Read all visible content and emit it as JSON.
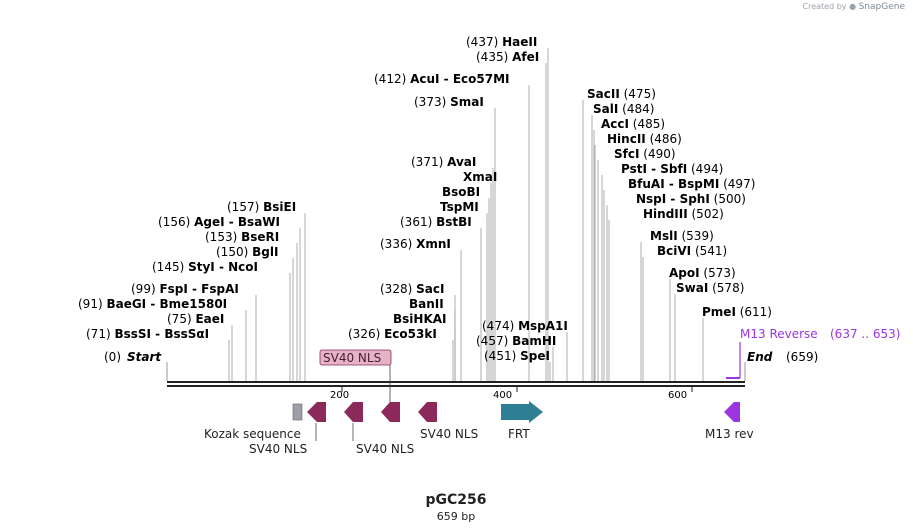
{
  "branding": {
    "created_by": "Created by",
    "brand": "SnapGene"
  },
  "plasmid": {
    "name": "pGC256",
    "length_label": "659 bp"
  },
  "sites": [
    {
      "pos": "(437)",
      "names": [
        "HaeII"
      ]
    },
    {
      "pos": "(435)",
      "names": [
        "AfeI"
      ]
    },
    {
      "pos": "(412)",
      "names": [
        "AcuI",
        "Eco57MI"
      ]
    },
    {
      "pos": "(373)",
      "names": [
        "SmaI"
      ]
    },
    {
      "pos": "(371)",
      "names": [
        "AvaI"
      ]
    },
    {
      "pos": "",
      "names": [
        "XmaI"
      ]
    },
    {
      "pos": "",
      "names": [
        "BsoBI"
      ]
    },
    {
      "pos": "",
      "names": [
        "TspMI"
      ]
    },
    {
      "pos": "(361)",
      "names": [
        "BstBI"
      ]
    },
    {
      "pos": "(336)",
      "names": [
        "XmnI"
      ]
    },
    {
      "pos": "(328)",
      "names": [
        "SacI"
      ]
    },
    {
      "pos": "",
      "names": [
        "BanII"
      ]
    },
    {
      "pos": "",
      "names": [
        "BsiHKAI"
      ]
    },
    {
      "pos": "(326)",
      "names": [
        "Eco53kI"
      ]
    },
    {
      "pos": "(157)",
      "names": [
        "BsiEI"
      ]
    },
    {
      "pos": "(156)",
      "names": [
        "AgeI",
        "BsaWI"
      ]
    },
    {
      "pos": "(153)",
      "names": [
        "BseRI"
      ]
    },
    {
      "pos": "(150)",
      "names": [
        "BglI"
      ]
    },
    {
      "pos": "(145)",
      "names": [
        "StyI",
        "NcoI"
      ]
    },
    {
      "pos": "(99)",
      "names": [
        "FspI",
        "FspAI"
      ]
    },
    {
      "pos": "(91)",
      "names": [
        "BaeGI",
        "Bme1580I"
      ]
    },
    {
      "pos": "(75)",
      "names": [
        "EaeI"
      ]
    },
    {
      "pos": "(71)",
      "names": [
        "BssSI",
        "BssSαI"
      ]
    },
    {
      "pos": "(474)",
      "names": [
        "MspA1I"
      ]
    },
    {
      "pos": "(457)",
      "names": [
        "BamHI"
      ]
    },
    {
      "pos": "(451)",
      "names": [
        "SpeI"
      ]
    },
    {
      "pos": "(475)",
      "names": [
        "SacII"
      ]
    },
    {
      "pos": "(484)",
      "names": [
        "SalI"
      ]
    },
    {
      "pos": "(485)",
      "names": [
        "AccI"
      ]
    },
    {
      "pos": "(486)",
      "names": [
        "HincII"
      ]
    },
    {
      "pos": "(490)",
      "names": [
        "SfcI"
      ]
    },
    {
      "pos": "(494)",
      "names": [
        "PstI",
        "SbfI"
      ]
    },
    {
      "pos": "(497)",
      "names": [
        "BfuAI",
        "BspMI"
      ]
    },
    {
      "pos": "(500)",
      "names": [
        "NspI",
        "SphI"
      ]
    },
    {
      "pos": "(502)",
      "names": [
        "HindIII"
      ]
    },
    {
      "pos": "(539)",
      "names": [
        "MslI"
      ]
    },
    {
      "pos": "(541)",
      "names": [
        "BciVI"
      ]
    },
    {
      "pos": "(573)",
      "names": [
        "ApoI"
      ]
    },
    {
      "pos": "(578)",
      "names": [
        "SwaI"
      ]
    },
    {
      "pos": "(611)",
      "names": [
        "PmeI"
      ]
    }
  ],
  "endpoints": {
    "start_label": "Start",
    "start_pos": "(0)",
    "end_label": "End",
    "end_pos": "(659)"
  },
  "primer": {
    "name": "M13 Reverse",
    "range": "(637 .. 653)"
  },
  "ruler": [
    "200",
    "400",
    "600"
  ],
  "features": [
    {
      "label": "Kozak sequence",
      "type": "box"
    },
    {
      "label": "SV40 NLS",
      "type": "arrow-left"
    },
    {
      "label": "SV40 NLS",
      "type": "arrow-left"
    },
    {
      "label": "SV40 NLS",
      "type": "arrow-left"
    },
    {
      "label": "SV40 NLS",
      "type": "arrow-left"
    },
    {
      "label": "FRT",
      "type": "arrow-right"
    },
    {
      "label": "M13 rev",
      "type": "arrow-left"
    }
  ],
  "highlight_label": "SV40 NLS",
  "colors": {
    "nls": "#8b2a5a",
    "frt": "#2e7e94",
    "m13": "#9b35e0",
    "kozak": "#9aa0a6",
    "primer": "#9b35e0",
    "highlight_fill": "#e6b3c6"
  }
}
